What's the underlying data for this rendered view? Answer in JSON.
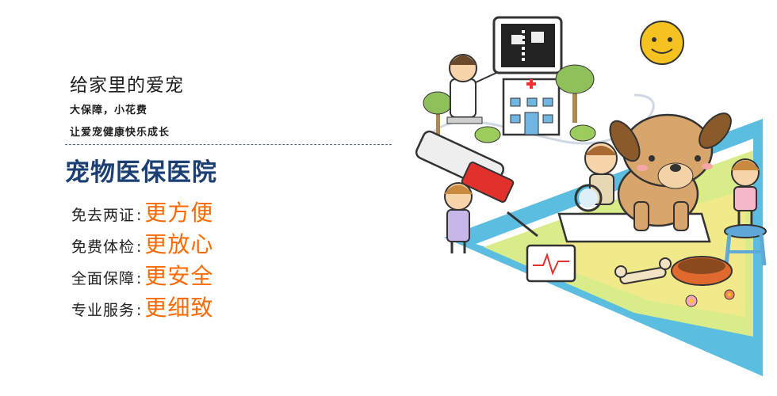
{
  "banner": {
    "headline": "给家里的爱宠",
    "sub1": "大保障，小花费",
    "sub2": "让爱宠健康快乐成长",
    "title": "宠物医保医院",
    "features": [
      {
        "label": "免去两证",
        "value": "更方便"
      },
      {
        "label": "免费体检",
        "value": "更放心"
      },
      {
        "label": "全面保障",
        "value": "更安全"
      },
      {
        "label": "专业服务",
        "value": "更细致"
      }
    ]
  },
  "colors": {
    "title": "#1c3f73",
    "accent": "#ff6a00",
    "triangle": "#5bbde0"
  }
}
